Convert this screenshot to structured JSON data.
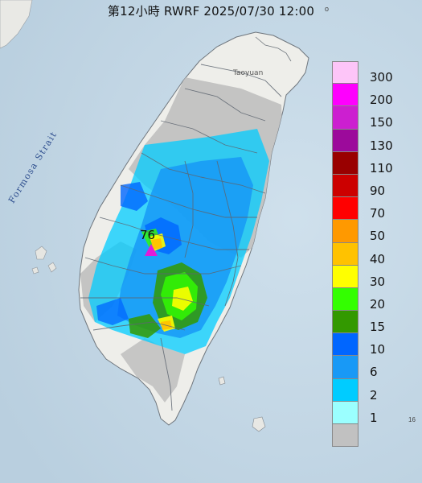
{
  "title": "第12小時  RWRF 2025/07/30 12:00",
  "map_labels": {
    "strait": "Formosa Strait",
    "city": "Taoyuan",
    "edge_right": "16",
    "edge_top": "o"
  },
  "max_marker": {
    "value": "76",
    "symbol": "triangle",
    "color": "#e21bd8"
  },
  "legend": {
    "items": [
      {
        "label": "300",
        "color": "#fdc5f8"
      },
      {
        "label": "200",
        "color": "#fe00fe"
      },
      {
        "label": "150",
        "color": "#cc1fd0"
      },
      {
        "label": "130",
        "color": "#9c0a9b"
      },
      {
        "label": "110",
        "color": "#990000"
      },
      {
        "label": "90",
        "color": "#cc0000"
      },
      {
        "label": "70",
        "color": "#ff0000"
      },
      {
        "label": "50",
        "color": "#ff9900"
      },
      {
        "label": "40",
        "color": "#ffc200"
      },
      {
        "label": "30",
        "color": "#ffff00"
      },
      {
        "label": "20",
        "color": "#33ff00"
      },
      {
        "label": "15",
        "color": "#339900"
      },
      {
        "label": "10",
        "color": "#0066ff"
      },
      {
        "label": "6",
        "color": "#1899f6"
      },
      {
        "label": "2",
        "color": "#00ccff"
      },
      {
        "label": "1",
        "color": "#9bffff"
      },
      {
        "label": "",
        "color": "#c1c1c1"
      }
    ]
  },
  "colors": {
    "sea": "#c7d9e6",
    "land": "#eeeeea",
    "no_rain": "#c1c1c1",
    "boundary": "#5d6570"
  }
}
